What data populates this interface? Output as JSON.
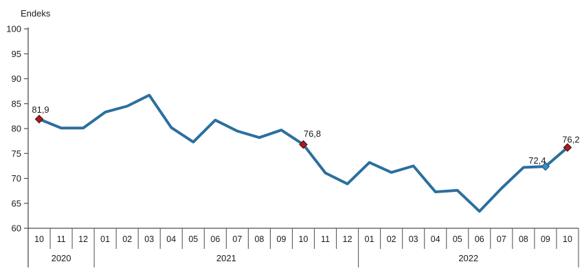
{
  "chart_data": {
    "type": "line",
    "ylabel": "Endeks",
    "ylim": [
      60,
      100
    ],
    "yticks": [
      100,
      95,
      90,
      85,
      80,
      75,
      70,
      65,
      60
    ],
    "categories": [
      "10",
      "11",
      "12",
      "01",
      "02",
      "03",
      "04",
      "05",
      "06",
      "07",
      "08",
      "09",
      "10",
      "11",
      "12",
      "01",
      "02",
      "03",
      "04",
      "05",
      "06",
      "07",
      "08",
      "09",
      "10"
    ],
    "year_groups": [
      {
        "label": "2020",
        "span": 3
      },
      {
        "label": "2021",
        "span": 12
      },
      {
        "label": "2022",
        "span": 10
      }
    ],
    "series": [
      {
        "name": "Endeks",
        "color": "#2B6F9E",
        "values": [
          81.9,
          80.1,
          80.1,
          83.3,
          84.5,
          86.7,
          80.2,
          77.3,
          81.7,
          79.5,
          78.2,
          79.7,
          76.8,
          71.1,
          68.9,
          73.2,
          71.2,
          72.5,
          67.3,
          67.6,
          63.4,
          68.0,
          72.2,
          72.4,
          76.2
        ]
      }
    ],
    "highlighted_points": [
      {
        "index": 0,
        "label": "81,9",
        "fill": "#A21E1E",
        "stroke": "#5E1010"
      },
      {
        "index": 12,
        "label": "76,8",
        "fill": "#A21E1E",
        "stroke": "#5E1010"
      },
      {
        "index": 23,
        "label": "72,4",
        "fill": "#3D8EC4",
        "stroke": "#1D5E8C"
      },
      {
        "index": 24,
        "label": "76,2",
        "fill": "#A21E1E",
        "stroke": "#5E1010"
      }
    ],
    "grid": false,
    "legend": false
  }
}
